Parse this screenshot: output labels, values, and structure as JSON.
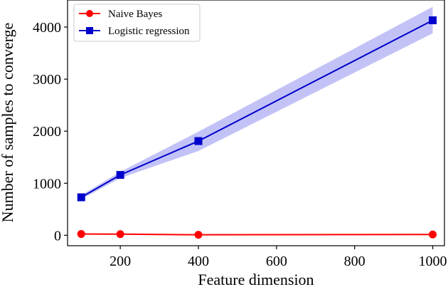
{
  "chart_data": {
    "type": "line",
    "title": "",
    "xlabel": "Feature dimension",
    "ylabel": "Number of samples to converge",
    "xlim": [
      65,
      1030
    ],
    "ylim": [
      -200,
      4520
    ],
    "xticks": [
      200,
      400,
      600,
      800,
      1000
    ],
    "yticks": [
      0,
      1000,
      2000,
      3000,
      4000
    ],
    "grid": false,
    "legend_position": "top-left",
    "series": [
      {
        "name": "Naive Bayes",
        "color": "#ff0000",
        "marker": "circle",
        "x": [
          100,
          200,
          400,
          1000
        ],
        "y": [
          25,
          22,
          10,
          15
        ]
      },
      {
        "name": "Logistic regression",
        "color": "#0000cc",
        "marker": "square",
        "x": [
          100,
          200,
          400,
          1000
        ],
        "y": [
          730,
          1160,
          1810,
          4130
        ],
        "band_lower": [
          690,
          1100,
          1620,
          3880
        ],
        "band_upper": [
          770,
          1220,
          1990,
          4390
        ],
        "band_color": "#8f8ff0"
      }
    ]
  }
}
